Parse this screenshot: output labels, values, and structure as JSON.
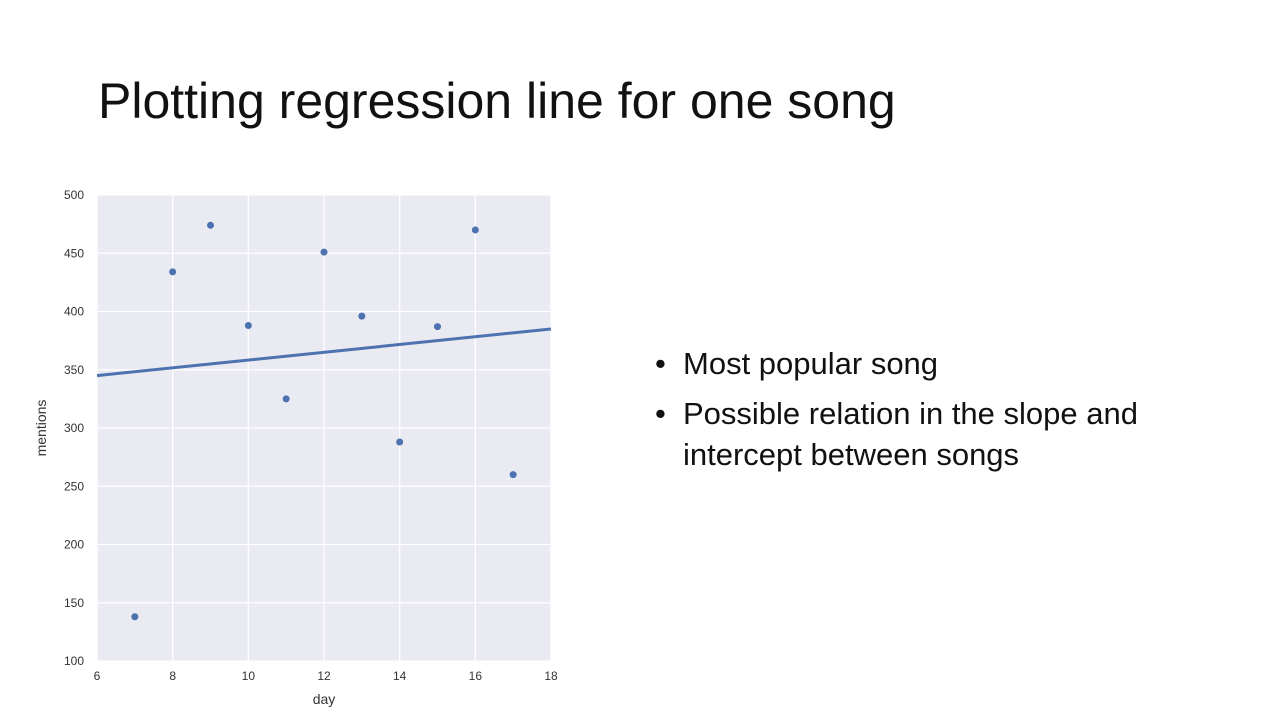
{
  "slide": {
    "title": "Plotting regression line for one song",
    "bullets": [
      "Most popular song",
      "Possible relation in the slope and intercept between songs"
    ],
    "bullet_glyph": "•"
  },
  "chart_data": {
    "type": "scatter",
    "title": "",
    "xlabel": "day",
    "ylabel": "mentions",
    "xlim": [
      6,
      18
    ],
    "ylim": [
      100,
      500
    ],
    "x_ticks": [
      6,
      8,
      10,
      12,
      14,
      16,
      18
    ],
    "y_ticks": [
      100,
      150,
      200,
      250,
      300,
      350,
      400,
      450,
      500
    ],
    "grid": true,
    "series": [
      {
        "x": [
          7,
          8,
          9,
          10,
          11,
          12,
          13,
          14,
          15,
          16,
          17
        ],
        "y": [
          138,
          434,
          474,
          388,
          325,
          451,
          396,
          288,
          387,
          470,
          260
        ]
      }
    ],
    "regression_line": {
      "x": [
        6,
        18
      ],
      "y": [
        345,
        385
      ]
    },
    "colors": {
      "background": "#eaeaf2",
      "grid": "#ffffff",
      "marker": "#4c72b0",
      "line": "#4c72b0"
    }
  }
}
